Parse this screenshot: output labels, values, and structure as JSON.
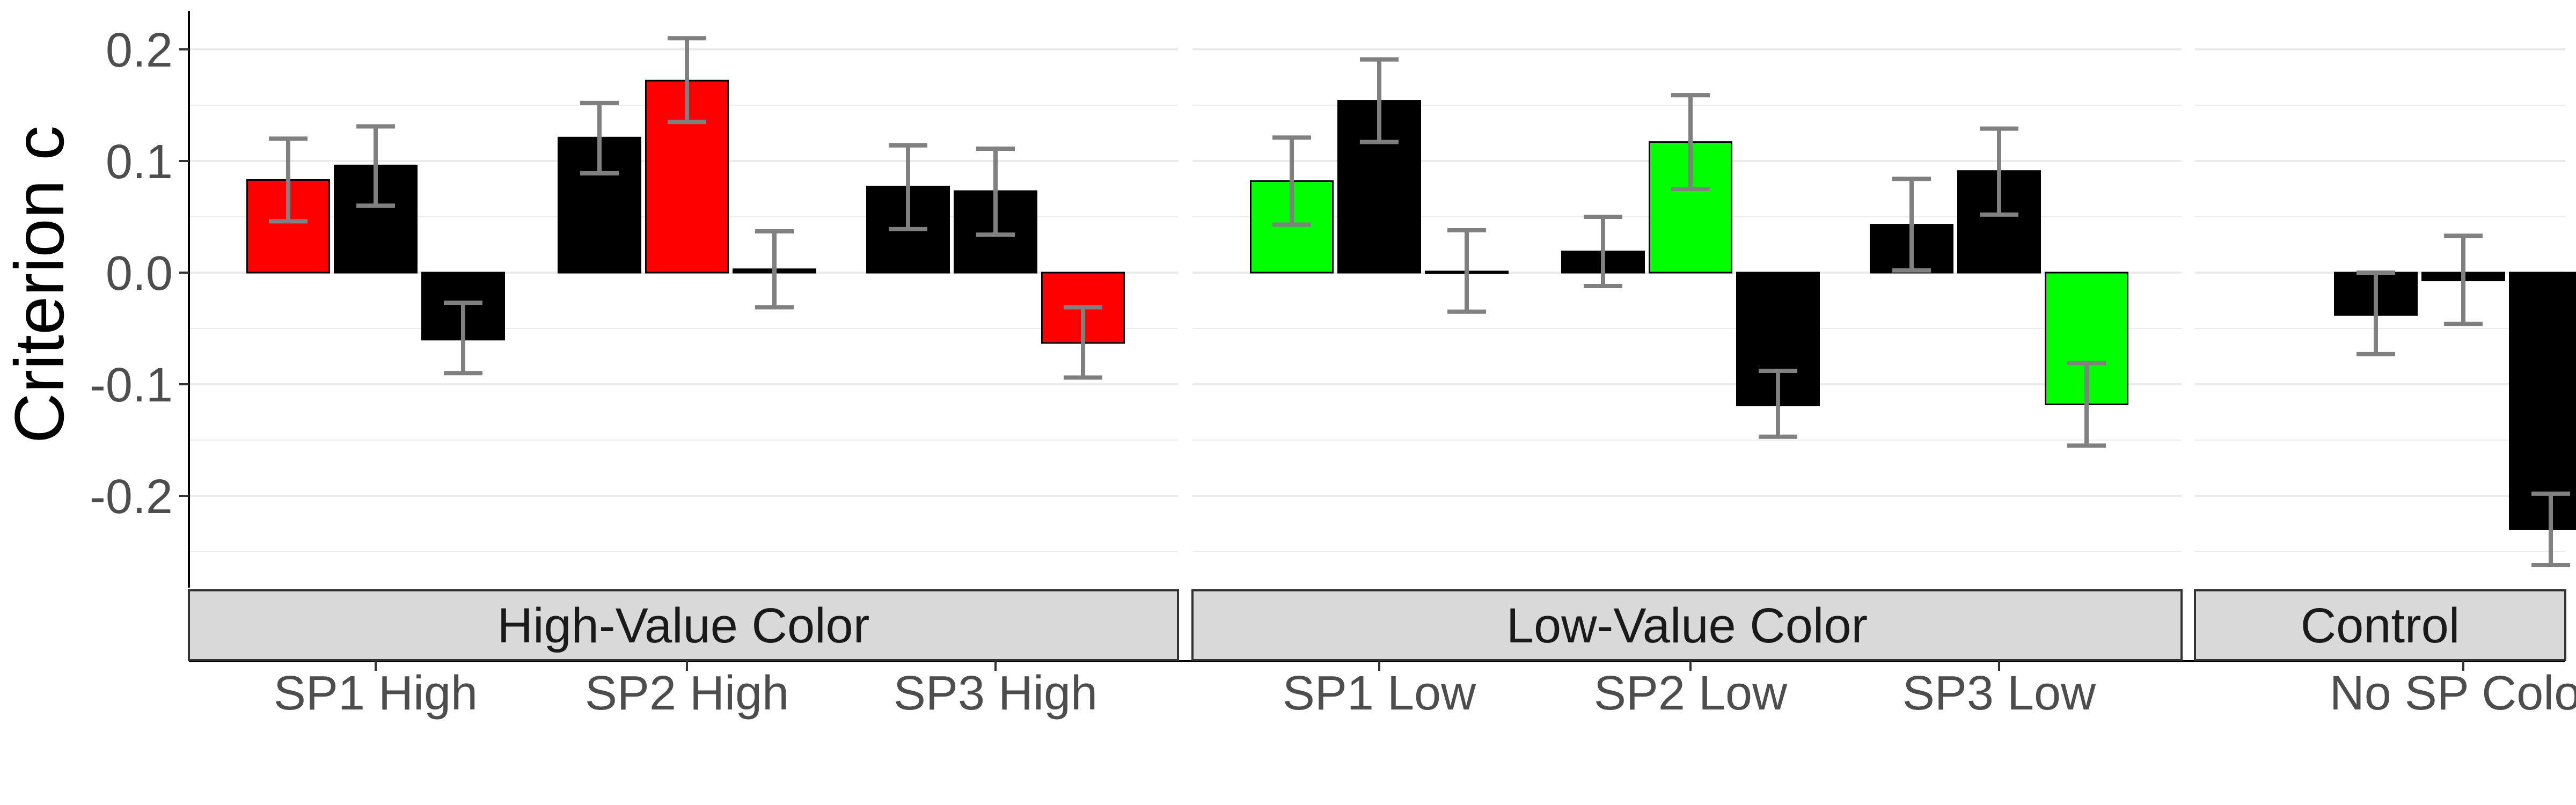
{
  "colors": {
    "high_value": "#FF0000",
    "low_value": "#00FF00",
    "neutral": "#000000",
    "error_bar": "#808080",
    "strip_fill": "#D9D9D9",
    "grid": "#EBEBEB"
  },
  "chart_data": {
    "type": "bar",
    "ylabel": "Criterion c",
    "ylim": [
      -0.29,
      0.23
    ],
    "yticks": [
      0.2,
      0.1,
      0.0,
      -0.1,
      -0.2
    ],
    "ytick_labels": [
      "0.2",
      "0.1",
      "0.0",
      "-0.1",
      "-0.2"
    ],
    "grid": true,
    "panels": [
      {
        "label": "High-Value Color",
        "groups": [
          {
            "label": "SP1 High",
            "bars": [
              {
                "value": 0.083,
                "err_low": 0.046,
                "err_high": 0.12,
                "color": "high_value"
              },
              {
                "value": 0.096,
                "err_low": 0.06,
                "err_high": 0.131,
                "color": "neutral"
              },
              {
                "value": -0.06,
                "err_low": -0.09,
                "err_high": -0.027,
                "color": "neutral"
              }
            ]
          },
          {
            "label": "SP2 High",
            "bars": [
              {
                "value": 0.121,
                "err_low": 0.089,
                "err_high": 0.152,
                "color": "neutral"
              },
              {
                "value": 0.172,
                "err_low": 0.135,
                "err_high": 0.21,
                "color": "high_value"
              },
              {
                "value": 0.003,
                "err_low": -0.031,
                "err_high": 0.037,
                "color": "neutral"
              }
            ]
          },
          {
            "label": "SP3 High",
            "bars": [
              {
                "value": 0.077,
                "err_low": 0.039,
                "err_high": 0.114,
                "color": "neutral"
              },
              {
                "value": 0.073,
                "err_low": 0.034,
                "err_high": 0.111,
                "color": "neutral"
              },
              {
                "value": -0.063,
                "err_low": -0.094,
                "err_high": -0.031,
                "color": "high_value"
              }
            ]
          }
        ]
      },
      {
        "label": "Low-Value Color",
        "groups": [
          {
            "label": "SP1 Low",
            "bars": [
              {
                "value": 0.082,
                "err_low": 0.043,
                "err_high": 0.121,
                "color": "low_value"
              },
              {
                "value": 0.154,
                "err_low": 0.117,
                "err_high": 0.191,
                "color": "neutral"
              },
              {
                "value": 0.001,
                "err_low": -0.035,
                "err_high": 0.038,
                "color": "neutral"
              }
            ]
          },
          {
            "label": "SP2 Low",
            "bars": [
              {
                "value": 0.019,
                "err_low": -0.012,
                "err_high": 0.05,
                "color": "neutral"
              },
              {
                "value": 0.117,
                "err_low": 0.075,
                "err_high": 0.159,
                "color": "low_value"
              },
              {
                "value": -0.119,
                "err_low": -0.147,
                "err_high": -0.088,
                "color": "neutral"
              }
            ]
          },
          {
            "label": "SP3 Low",
            "bars": [
              {
                "value": 0.043,
                "err_low": 0.002,
                "err_high": 0.084,
                "color": "neutral"
              },
              {
                "value": 0.091,
                "err_low": 0.052,
                "err_high": 0.129,
                "color": "neutral"
              },
              {
                "value": -0.118,
                "err_low": -0.155,
                "err_high": -0.081,
                "color": "low_value"
              }
            ]
          }
        ]
      },
      {
        "label": "Control",
        "groups": [
          {
            "label": "No SP Color",
            "bars": [
              {
                "value": -0.038,
                "err_low": -0.073,
                "err_high": 0.0,
                "color": "neutral"
              },
              {
                "value": -0.007,
                "err_low": -0.046,
                "err_high": 0.033,
                "color": "neutral"
              },
              {
                "value": -0.23,
                "err_low": -0.262,
                "err_high": -0.198,
                "color": "neutral"
              }
            ]
          }
        ]
      }
    ]
  }
}
